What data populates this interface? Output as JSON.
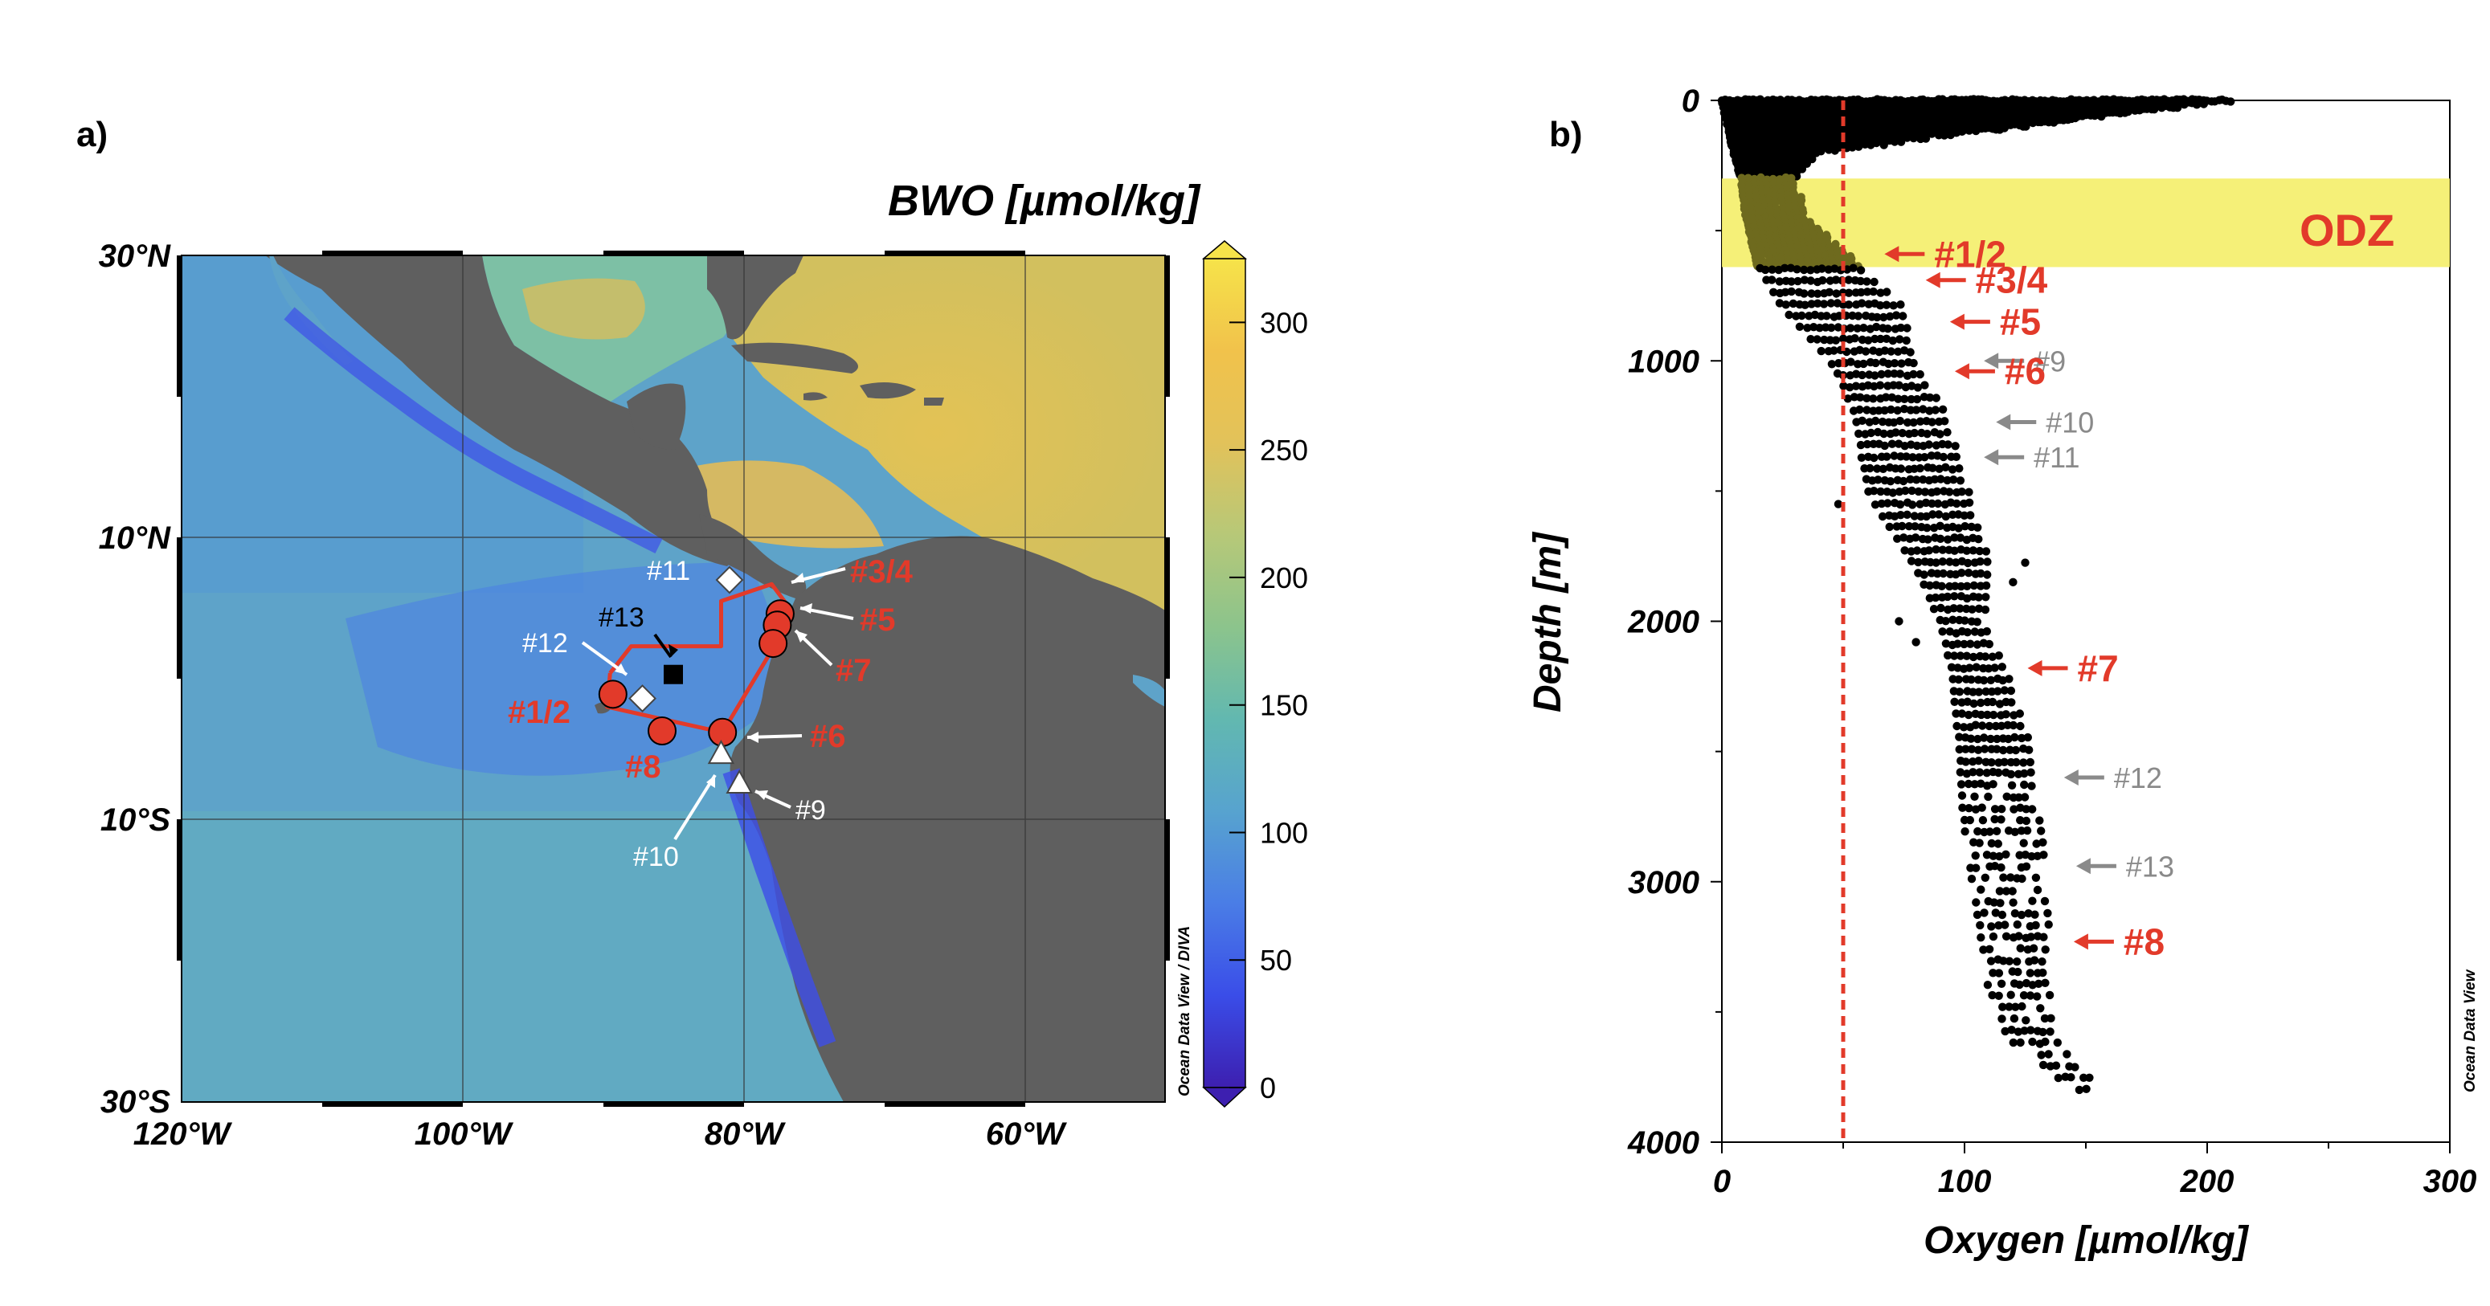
{
  "panel_a": {
    "letter": "a)",
    "colorbar_title": "BWO [µmol/kg]",
    "credit": "Ocean Data View / DIVA",
    "colorbar_ticks": [
      "300",
      "250",
      "200",
      "150",
      "100",
      "50",
      "0"
    ],
    "colorbar_range": [
      0,
      325
    ],
    "colorbar_stops": [
      "#3d1fb0",
      "#3a4de8",
      "#4a7de6",
      "#57a3cf",
      "#62b8b0",
      "#8cc48c",
      "#b7c878",
      "#e2c25a",
      "#f1c24b",
      "#f6e34a"
    ],
    "lat_ticks": [
      "30°N",
      "10°N",
      "10°S",
      "30°S"
    ],
    "lon_ticks": [
      "120°W",
      "100°W",
      "80°W",
      "60°W"
    ],
    "lon_range_deg": [
      -120,
      -50
    ],
    "lat_range_deg": [
      -30,
      30
    ],
    "colors": {
      "land": "#5f5f5f",
      "ocean": "#5ea6c6",
      "atlantic": "#cfbd63",
      "route": "#e23a2a",
      "marker": "#e23a2a"
    },
    "sites_red": [
      {
        "label": "#1/2",
        "lon": -89.3,
        "lat": -1.1
      },
      {
        "label": "#3/4",
        "lon": -77.4,
        "lat": 4.6
      },
      {
        "label": "#5",
        "lon": -77.6,
        "lat": 3.8
      },
      {
        "label": "#6",
        "lon": -81.5,
        "lat": -3.8
      },
      {
        "label": "#7",
        "lon": -77.9,
        "lat": 2.5
      },
      {
        "label": "#8",
        "lon": -85.8,
        "lat": -3.7
      }
    ],
    "sites_other": [
      {
        "label": "#9",
        "shape": "triangle",
        "lon": -80.3,
        "lat": -7.4
      },
      {
        "label": "#10",
        "shape": "triangle",
        "lon": -81.6,
        "lat": -5.3
      },
      {
        "label": "#11",
        "shape": "diamond",
        "lon": -81.0,
        "lat": 7.0
      },
      {
        "label": "#12",
        "shape": "diamond",
        "lon": -87.2,
        "lat": -1.4
      },
      {
        "label": "#13",
        "shape": "square",
        "lon": -85.0,
        "lat": 0.3
      }
    ],
    "route": [
      {
        "lon": -89.5,
        "lat": 0.4
      },
      {
        "lon": -89.7,
        "lat": -2.0
      },
      {
        "lon": -81.5,
        "lat": -3.8
      },
      {
        "lon": -78.3,
        "lat": 1.5
      },
      {
        "lon": -76.5,
        "lat": 4.7
      },
      {
        "lon": -78.0,
        "lat": 6.7
      },
      {
        "lon": -81.6,
        "lat": 5.5
      },
      {
        "lon": -81.6,
        "lat": 2.3
      },
      {
        "lon": -88.0,
        "lat": 2.3
      },
      {
        "lon": -89.5,
        "lat": 0.4
      }
    ]
  },
  "panel_b": {
    "letter": "b)",
    "credit": "Ocean Data View",
    "odz_label": "ODZ",
    "y_title": "Depth [m]",
    "x_title": "Oxygen [µmol/kg]",
    "y_ticks": [
      "0",
      "1000",
      "2000",
      "3000",
      "4000"
    ],
    "x_ticks": [
      "0",
      "100",
      "200",
      "300"
    ],
    "odz_color": "#f4ef6c",
    "threshold_color": "#e23a2a",
    "arrows": [
      {
        "label": "#1/2",
        "style": "red",
        "o": 67,
        "depth": 590
      },
      {
        "label": "#3/4",
        "style": "red",
        "o": 84,
        "depth": 690
      },
      {
        "label": "#5",
        "style": "red",
        "o": 94,
        "depth": 850
      },
      {
        "label": "#9",
        "style": "grey",
        "o": 108,
        "depth": 1000
      },
      {
        "label": "#6",
        "style": "red",
        "o": 96,
        "depth": 1040
      },
      {
        "label": "#10",
        "style": "grey",
        "o": 113,
        "depth": 1235
      },
      {
        "label": "#11",
        "style": "grey",
        "o": 108,
        "depth": 1370
      },
      {
        "label": "#7",
        "style": "red",
        "o": 126,
        "depth": 2180
      },
      {
        "label": "#12",
        "style": "grey",
        "o": 141,
        "depth": 2600
      },
      {
        "label": "#13",
        "style": "grey",
        "o": 146,
        "depth": 2940
      },
      {
        "label": "#8",
        "style": "red",
        "o": 145,
        "depth": 3230
      }
    ]
  },
  "chart_data": {
    "type": "scatter",
    "xlabel": "Oxygen [µmol/kg]",
    "ylabel": "Depth [m]",
    "xlim": [
      0,
      300
    ],
    "ylim": [
      4000,
      0
    ],
    "y_axis_inverted": true,
    "threshold_line_x": 50,
    "odz_depth_band": [
      300,
      640
    ],
    "envelope": [
      {
        "depth": 0,
        "min": 0,
        "max": 210
      },
      {
        "depth": 80,
        "min": 2,
        "max": 140
      },
      {
        "depth": 200,
        "min": 5,
        "max": 40
      },
      {
        "depth": 300,
        "min": 8,
        "max": 30
      },
      {
        "depth": 450,
        "min": 10,
        "max": 35
      },
      {
        "depth": 640,
        "min": 15,
        "max": 58
      },
      {
        "depth": 800,
        "min": 25,
        "max": 76
      },
      {
        "depth": 1000,
        "min": 45,
        "max": 80
      },
      {
        "depth": 1200,
        "min": 55,
        "max": 92
      },
      {
        "depth": 1500,
        "min": 60,
        "max": 102
      },
      {
        "depth": 1800,
        "min": 80,
        "max": 112
      },
      {
        "depth": 2000,
        "min": 90,
        "max": 108
      },
      {
        "depth": 2200,
        "min": 95,
        "max": 118
      },
      {
        "depth": 2500,
        "min": 98,
        "max": 128
      },
      {
        "depth": 2800,
        "min": 100,
        "max": 132
      },
      {
        "depth": 3100,
        "min": 105,
        "max": 135
      },
      {
        "depth": 3400,
        "min": 110,
        "max": 135
      },
      {
        "depth": 3600,
        "min": 118,
        "max": 138
      },
      {
        "depth": 3800,
        "min": 145,
        "max": 157
      }
    ],
    "outliers": [
      {
        "o": 120,
        "depth": 1850
      },
      {
        "o": 125,
        "depth": 1775
      },
      {
        "o": 73,
        "depth": 2000
      },
      {
        "o": 80,
        "depth": 2080
      },
      {
        "o": 48,
        "depth": 1550
      }
    ]
  }
}
